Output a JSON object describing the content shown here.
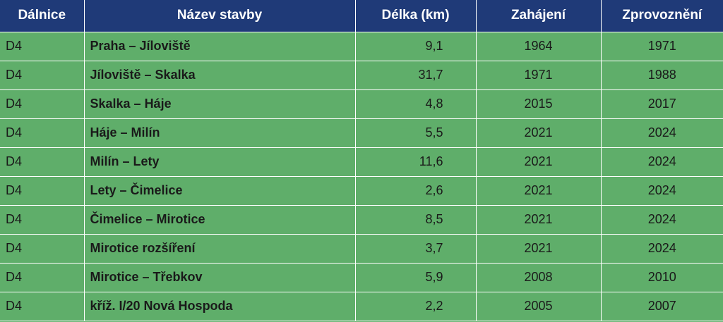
{
  "table": {
    "headers": [
      "Dálnice",
      "Název stavby",
      "Délka (km)",
      "Zahájení",
      "Zprovoznění"
    ],
    "rows": [
      [
        "D4",
        "Praha – Jíloviště",
        "9,1",
        "1964",
        "1971"
      ],
      [
        "D4",
        "Jíloviště – Skalka",
        "31,7",
        "1971",
        "1988"
      ],
      [
        "D4",
        "Skalka – Háje",
        "4,8",
        "2015",
        "2017"
      ],
      [
        "D4",
        "Háje – Milín",
        "5,5",
        "2021",
        "2024"
      ],
      [
        "D4",
        "Milín – Lety",
        "11,6",
        "2021",
        "2024"
      ],
      [
        "D4",
        "Lety – Čimelice",
        "2,6",
        "2021",
        "2024"
      ],
      [
        "D4",
        "Čimelice – Mirotice",
        "8,5",
        "2021",
        "2024"
      ],
      [
        "D4",
        "Mirotice rozšíření",
        "3,7",
        "2021",
        "2024"
      ],
      [
        "D4",
        "Mirotice – Třebkov",
        "5,9",
        "2008",
        "2010"
      ],
      [
        "D4",
        "kříž. I/20 Nová Hospoda",
        "2,2",
        "2005",
        "2007"
      ]
    ]
  },
  "colors": {
    "header_bg": "#1f3a78",
    "row_bg": "#5fae6a",
    "grid_line": "#ffffff"
  }
}
